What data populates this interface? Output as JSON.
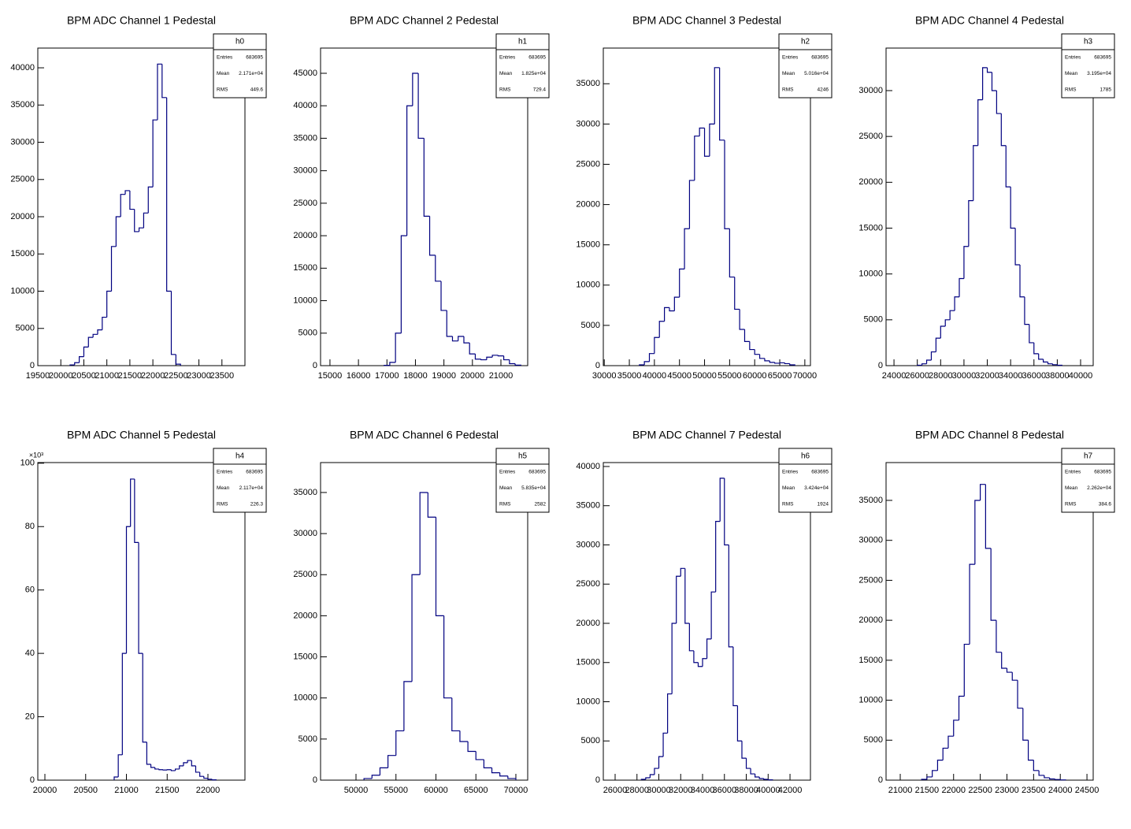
{
  "chart_data": [
    {
      "type": "histogram",
      "title": "BPM ADC Channel 1 Pedestal",
      "color": "#000080",
      "stats": {
        "name": "h0",
        "rows": [
          [
            "Entries",
            "683695"
          ],
          [
            "Mean",
            "2.171e+04"
          ],
          [
            "RMS",
            "449.6"
          ]
        ]
      },
      "xlim": [
        19500,
        24000
      ],
      "ylim": [
        0,
        42650
      ],
      "xticks": [
        19500,
        20000,
        20500,
        21000,
        21500,
        22000,
        22500,
        23000,
        23500
      ],
      "yticks": [
        0,
        5000,
        10000,
        15000,
        20000,
        25000,
        30000,
        35000,
        40000
      ],
      "bins": [
        20200,
        20300,
        20400,
        20500,
        20600,
        20700,
        20800,
        20900,
        21000,
        21100,
        21200,
        21300,
        21400,
        21500,
        21600,
        21700,
        21800,
        21900,
        22000,
        22100,
        22200,
        22300,
        22400,
        22500,
        22600
      ],
      "values": [
        100,
        400,
        1200,
        2500,
        3800,
        4200,
        4800,
        6500,
        10000,
        16000,
        20000,
        23000,
        23500,
        21000,
        18000,
        18500,
        20500,
        24000,
        33000,
        40500,
        36000,
        10000,
        1500,
        200
      ]
    },
    {
      "type": "histogram",
      "title": "BPM ADC Channel 2 Pedestal",
      "color": "#000080",
      "stats": {
        "name": "h1",
        "rows": [
          [
            "Entries",
            "683695"
          ],
          [
            "Mean",
            "1.825e+04"
          ],
          [
            "RMS",
            "729.4"
          ]
        ]
      },
      "xlim": [
        14670,
        21940
      ],
      "ylim": [
        0,
        48880
      ],
      "xticks": [
        15000,
        16000,
        17000,
        18000,
        19000,
        20000,
        21000
      ],
      "yticks": [
        0,
        5000,
        10000,
        15000,
        20000,
        25000,
        30000,
        35000,
        40000,
        45000
      ],
      "bins": [
        16900,
        17100,
        17300,
        17500,
        17700,
        17900,
        18100,
        18300,
        18500,
        18700,
        18900,
        19100,
        19300,
        19500,
        19700,
        19900,
        20100,
        20300,
        20500,
        20700,
        20900,
        21100,
        21300,
        21500,
        21700
      ],
      "values": [
        50,
        500,
        5000,
        20000,
        40000,
        45000,
        35000,
        23000,
        17000,
        13000,
        8500,
        4500,
        3800,
        4500,
        3500,
        1800,
        1000,
        900,
        1300,
        1600,
        1500,
        900,
        300,
        80
      ]
    },
    {
      "type": "histogram",
      "title": "BPM ADC Channel 3 Pedestal",
      "color": "#000080",
      "stats": {
        "name": "h2",
        "rows": [
          [
            "Entries",
            "683695"
          ],
          [
            "Mean",
            "5.016e+04"
          ],
          [
            "RMS",
            "4246"
          ]
        ]
      },
      "xlim": [
        29810,
        71120
      ],
      "ylim": [
        0,
        39430
      ],
      "xticks": [
        30000,
        35000,
        40000,
        45000,
        50000,
        55000,
        60000,
        65000,
        70000
      ],
      "yticks": [
        0,
        5000,
        10000,
        15000,
        20000,
        25000,
        30000,
        35000
      ],
      "bins": [
        37000,
        38000,
        39000,
        40000,
        41000,
        42000,
        43000,
        44000,
        45000,
        46000,
        47000,
        48000,
        49000,
        50000,
        51000,
        52000,
        53000,
        54000,
        55000,
        56000,
        57000,
        58000,
        59000,
        60000,
        61000,
        62000,
        63000,
        64000,
        65000,
        66000,
        67000,
        68000
      ],
      "values": [
        100,
        500,
        1500,
        3500,
        5500,
        7200,
        6800,
        8500,
        12000,
        17000,
        23000,
        28500,
        29500,
        26000,
        30000,
        37000,
        28000,
        17000,
        11000,
        7000,
        4500,
        3000,
        2000,
        1400,
        900,
        600,
        400,
        300,
        350,
        250,
        100
      ]
    },
    {
      "type": "histogram",
      "title": "BPM ADC Channel 4 Pedestal",
      "color": "#000080",
      "stats": {
        "name": "h3",
        "rows": [
          [
            "Entries",
            "683695"
          ],
          [
            "Mean",
            "3.195e+04"
          ],
          [
            "RMS",
            "1785"
          ]
        ]
      },
      "xlim": [
        23320,
        41080
      ],
      "ylim": [
        0,
        34640
      ],
      "xticks": [
        24000,
        26000,
        28000,
        30000,
        32000,
        34000,
        36000,
        38000,
        40000
      ],
      "yticks": [
        0,
        5000,
        10000,
        15000,
        20000,
        25000,
        30000
      ],
      "bins": [
        26000,
        26400,
        26800,
        27200,
        27600,
        28000,
        28400,
        28800,
        29200,
        29600,
        30000,
        30400,
        30800,
        31200,
        31600,
        32000,
        32400,
        32800,
        33200,
        33600,
        34000,
        34400,
        34800,
        35200,
        35600,
        36000,
        36400,
        36800,
        37200,
        37600,
        38000,
        38400
      ],
      "values": [
        50,
        200,
        600,
        1500,
        3000,
        4300,
        5000,
        6000,
        7500,
        9500,
        13000,
        18000,
        24000,
        29000,
        32500,
        32000,
        30000,
        27500,
        24000,
        19500,
        15000,
        11000,
        7500,
        4500,
        2500,
        1300,
        700,
        400,
        200,
        100,
        40
      ]
    },
    {
      "type": "histogram",
      "title": "BPM ADC Channel 5 Pedestal",
      "color": "#000080",
      "stats": {
        "name": "h4",
        "rows": [
          [
            "Entries",
            "683695"
          ],
          [
            "Mean",
            "2.117e+04"
          ],
          [
            "RMS",
            "226.3"
          ]
        ]
      },
      "y_multiplier": "×10³",
      "xlim": [
        19913,
        22454
      ],
      "ylim": [
        0,
        100200
      ],
      "xticks": [
        20000,
        20500,
        21000,
        21500,
        22000
      ],
      "yticks": [
        0,
        {
          "value": 20000,
          "label": "20"
        },
        {
          "value": 40000,
          "label": "40"
        },
        {
          "value": 60000,
          "label": "60"
        },
        {
          "value": 80000,
          "label": "80"
        },
        {
          "value": 100000,
          "label": "100"
        }
      ],
      "bins": [
        20850,
        20900,
        20950,
        21000,
        21050,
        21100,
        21150,
        21200,
        21250,
        21300,
        21350,
        21400,
        21450,
        21500,
        21550,
        21600,
        21650,
        21700,
        21750,
        21800,
        21850,
        21900,
        21950,
        22000,
        22050,
        22100
      ],
      "values": [
        1000,
        8000,
        40000,
        80000,
        95000,
        75000,
        40000,
        12000,
        5000,
        4000,
        3500,
        3300,
        3200,
        3300,
        3000,
        3500,
        4500,
        5500,
        6200,
        4500,
        2500,
        1200,
        600,
        300,
        100
      ]
    },
    {
      "type": "histogram",
      "title": "BPM ADC Channel 6 Pedestal",
      "color": "#000080",
      "stats": {
        "name": "h5",
        "rows": [
          [
            "Entries",
            "683695"
          ],
          [
            "Mean",
            "5.835e+04"
          ],
          [
            "RMS",
            "2582"
          ]
        ]
      },
      "xlim": [
        45567,
        71480
      ],
      "ylim": [
        0,
        38640
      ],
      "xticks": [
        50000,
        55000,
        60000,
        65000,
        70000
      ],
      "yticks": [
        0,
        5000,
        10000,
        15000,
        20000,
        25000,
        30000,
        35000
      ],
      "bins": [
        51000,
        52000,
        53000,
        54000,
        55000,
        56000,
        57000,
        58000,
        59000,
        60000,
        61000,
        62000,
        63000,
        64000,
        65000,
        66000,
        67000,
        68000,
        69000,
        70000
      ],
      "values": [
        200,
        600,
        1500,
        3000,
        6000,
        12000,
        25000,
        35000,
        32000,
        20000,
        10000,
        6000,
        4700,
        3500,
        2500,
        1500,
        900,
        500,
        200
      ]
    },
    {
      "type": "histogram",
      "title": "BPM ADC Channel 7 Pedestal",
      "color": "#000080",
      "stats": {
        "name": "h6",
        "rows": [
          [
            "Entries",
            "683695"
          ],
          [
            "Mean",
            "3.424e+04"
          ],
          [
            "RMS",
            "1924"
          ]
        ]
      },
      "xlim": [
        24920,
        43870
      ],
      "ylim": [
        0,
        40500
      ],
      "xticks": [
        26000,
        28000,
        30000,
        32000,
        34000,
        36000,
        38000,
        40000,
        42000
      ],
      "yticks": [
        0,
        5000,
        10000,
        15000,
        20000,
        25000,
        30000,
        35000,
        40000
      ],
      "bins": [
        28400,
        28800,
        29200,
        29600,
        30000,
        30400,
        30800,
        31200,
        31600,
        32000,
        32400,
        32800,
        33200,
        33600,
        34000,
        34400,
        34800,
        35200,
        35600,
        36000,
        36400,
        36800,
        37200,
        37600,
        38000,
        38400,
        38800,
        39200,
        39600,
        40000,
        40400
      ],
      "values": [
        100,
        300,
        700,
        1500,
        3000,
        6000,
        11000,
        20000,
        26000,
        27000,
        20000,
        16500,
        15000,
        14500,
        15500,
        18000,
        24000,
        33000,
        38500,
        30000,
        17000,
        9500,
        5000,
        2800,
        1500,
        800,
        400,
        200,
        100,
        40
      ]
    },
    {
      "type": "histogram",
      "title": "BPM ADC Channel 8 Pedestal",
      "color": "#000080",
      "stats": {
        "name": "h7",
        "rows": [
          [
            "Entries",
            "683695"
          ],
          [
            "Mean",
            "2.262e+04"
          ],
          [
            "RMS",
            "384.6"
          ]
        ]
      },
      "xlim": [
        20734,
        24617
      ],
      "ylim": [
        0,
        39730
      ],
      "xticks": [
        21000,
        21500,
        22000,
        22500,
        23000,
        23500,
        24000,
        24500
      ],
      "yticks": [
        0,
        5000,
        10000,
        15000,
        20000,
        25000,
        30000,
        35000
      ],
      "bins": [
        21400,
        21500,
        21600,
        21700,
        21800,
        21900,
        22000,
        22100,
        22200,
        22300,
        22400,
        22500,
        22600,
        22700,
        22800,
        22900,
        23000,
        23100,
        23200,
        23300,
        23400,
        23500,
        23600,
        23700,
        23800,
        23900,
        24000,
        24100
      ],
      "values": [
        100,
        400,
        1200,
        2500,
        4000,
        5500,
        7500,
        10500,
        17000,
        27000,
        35000,
        37000,
        29000,
        20000,
        16000,
        14000,
        13500,
        12500,
        9000,
        5000,
        2500,
        1200,
        600,
        300,
        150,
        80,
        30
      ]
    }
  ]
}
